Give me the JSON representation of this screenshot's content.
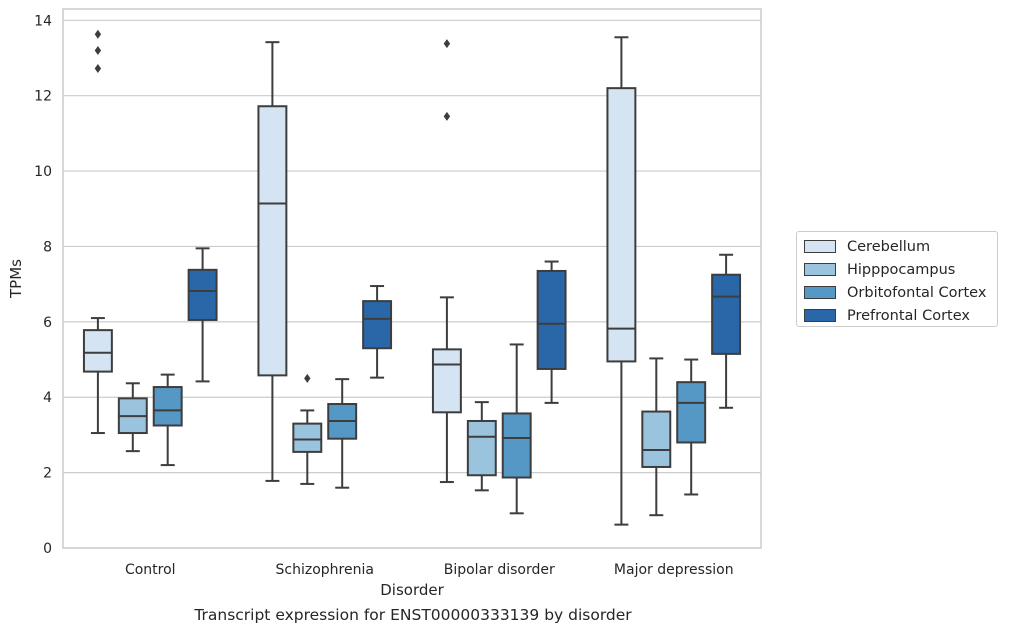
{
  "chart_data": {
    "type": "box",
    "title": "Transcript expression for ENST00000333139 by disorder",
    "xlabel": "Disorder",
    "ylabel": "TPMs",
    "ylim": [
      0,
      14.3
    ],
    "yticks": [
      0,
      2,
      4,
      6,
      8,
      10,
      12,
      14
    ],
    "grid": "horizontal",
    "legend_position": "right",
    "categories": [
      "Control",
      "Schizophrenia",
      "Bipolar disorder",
      "Major depression"
    ],
    "series": [
      {
        "name": "Cerebellum",
        "color": "#d5e4f3",
        "boxes": [
          {
            "whisker_low": 3.05,
            "q1": 4.68,
            "median": 5.18,
            "q3": 5.78,
            "whisker_high": 6.1,
            "outliers": [
              12.72,
              13.2,
              13.63
            ]
          },
          {
            "whisker_low": 1.78,
            "q1": 4.58,
            "median": 9.14,
            "q3": 11.72,
            "whisker_high": 13.42,
            "outliers": []
          },
          {
            "whisker_low": 1.75,
            "q1": 3.6,
            "median": 4.87,
            "q3": 5.27,
            "whisker_high": 6.65,
            "outliers": [
              11.45,
              13.38
            ]
          },
          {
            "whisker_low": 0.62,
            "q1": 4.95,
            "median": 5.82,
            "q3": 12.2,
            "whisker_high": 13.55,
            "outliers": []
          }
        ]
      },
      {
        "name": "Hipppocampus",
        "color": "#9ac4de",
        "boxes": [
          {
            "whisker_low": 2.57,
            "q1": 3.05,
            "median": 3.5,
            "q3": 3.97,
            "whisker_high": 4.37,
            "outliers": []
          },
          {
            "whisker_low": 1.7,
            "q1": 2.55,
            "median": 2.88,
            "q3": 3.3,
            "whisker_high": 3.65,
            "outliers": [
              4.5
            ]
          },
          {
            "whisker_low": 1.53,
            "q1": 1.93,
            "median": 2.95,
            "q3": 3.37,
            "whisker_high": 3.87,
            "outliers": []
          },
          {
            "whisker_low": 0.87,
            "q1": 2.15,
            "median": 2.6,
            "q3": 3.62,
            "whisker_high": 5.03,
            "outliers": []
          }
        ]
      },
      {
        "name": "Orbitofontal Cortex",
        "color": "#5597c5",
        "boxes": [
          {
            "whisker_low": 2.2,
            "q1": 3.25,
            "median": 3.65,
            "q3": 4.27,
            "whisker_high": 4.6,
            "outliers": []
          },
          {
            "whisker_low": 1.6,
            "q1": 2.9,
            "median": 3.37,
            "q3": 3.82,
            "whisker_high": 4.48,
            "outliers": []
          },
          {
            "whisker_low": 0.92,
            "q1": 1.87,
            "median": 2.92,
            "q3": 3.57,
            "whisker_high": 5.4,
            "outliers": []
          },
          {
            "whisker_low": 1.42,
            "q1": 2.8,
            "median": 3.85,
            "q3": 4.4,
            "whisker_high": 5.0,
            "outliers": []
          }
        ]
      },
      {
        "name": "Prefrontal Cortex",
        "color": "#2a67a8",
        "boxes": [
          {
            "whisker_low": 4.42,
            "q1": 6.05,
            "median": 6.82,
            "q3": 7.38,
            "whisker_high": 7.95,
            "outliers": []
          },
          {
            "whisker_low": 4.52,
            "q1": 5.3,
            "median": 6.08,
            "q3": 6.55,
            "whisker_high": 6.95,
            "outliers": []
          },
          {
            "whisker_low": 3.85,
            "q1": 4.75,
            "median": 5.95,
            "q3": 7.35,
            "whisker_high": 7.6,
            "outliers": []
          },
          {
            "whisker_low": 3.72,
            "q1": 5.15,
            "median": 6.67,
            "q3": 7.25,
            "whisker_high": 7.78,
            "outliers": []
          }
        ]
      }
    ]
  }
}
